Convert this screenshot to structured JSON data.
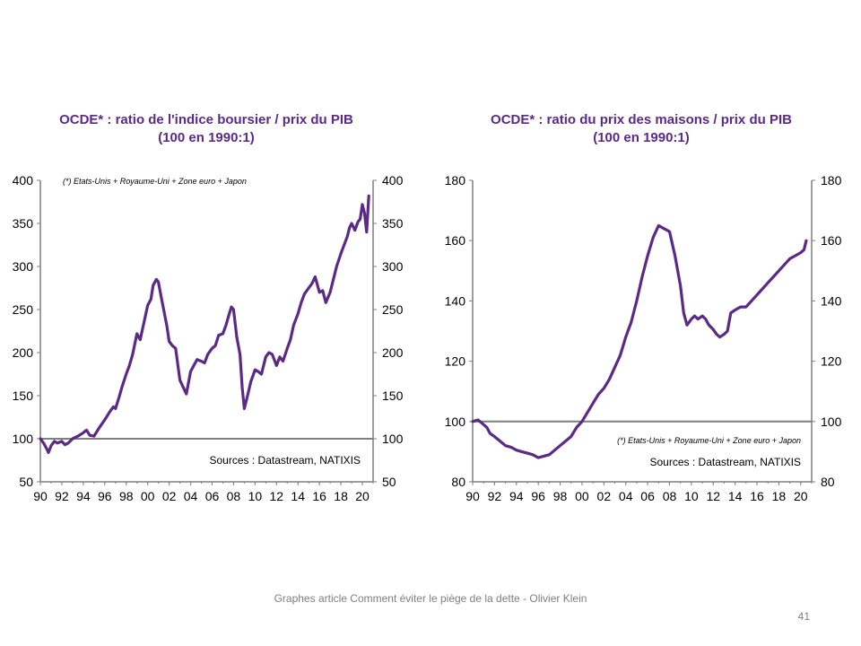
{
  "slide": {
    "footer": "Graphes article Comment  éviter le piège de la dette - Olivier Klein",
    "page_number": "41"
  },
  "colors": {
    "line": "#5b2a86",
    "baseline": "#7f7f7f",
    "axis": "#7f7f7f",
    "title": "#5b2a86"
  },
  "chart_data": [
    {
      "type": "line",
      "title": "OCDE* : ratio de l'indice boursier / prix du PIB",
      "subtitle": "(100 en 1990:1)",
      "note": "(*) Etats-Unis + Royaume-Uni + Zone euro + Japon",
      "sources": "Sources : Datastream,  NATIXIS",
      "x_ticks": [
        "90",
        "92",
        "94",
        "96",
        "98",
        "00",
        "02",
        "04",
        "06",
        "08",
        "10",
        "12",
        "14",
        "16",
        "18",
        "20"
      ],
      "y_ticks": [
        50,
        100,
        150,
        200,
        250,
        300,
        350,
        400
      ],
      "xlim": [
        1990,
        2021
      ],
      "ylim": [
        50,
        400
      ],
      "baseline": 100,
      "grid": false,
      "series": [
        {
          "x": [
            1990.0,
            1990.3,
            1990.6,
            1990.75,
            1991.0,
            1991.3,
            1991.6,
            1992.0,
            1992.3,
            1992.6,
            1993.0,
            1993.5,
            1994.0,
            1994.3,
            1994.6,
            1995.0,
            1995.5,
            1996.0,
            1996.5,
            1996.8,
            1997.0,
            1997.3,
            1997.6,
            1998.0,
            1998.3,
            1998.6,
            1998.8,
            1999.0,
            1999.3,
            1999.6,
            2000.0,
            2000.3,
            2000.5,
            2000.8,
            2001.0,
            2001.3,
            2001.6,
            2001.8,
            2002.0,
            2002.3,
            2002.6,
            2003.0,
            2003.3,
            2003.6,
            2004.0,
            2004.3,
            2004.6,
            2005.0,
            2005.3,
            2005.6,
            2006.0,
            2006.3,
            2006.6,
            2007.0,
            2007.3,
            2007.6,
            2007.8,
            2008.0,
            2008.3,
            2008.6,
            2008.8,
            2009.0,
            2009.3,
            2009.6,
            2010.0,
            2010.3,
            2010.6,
            2011.0,
            2011.3,
            2011.6,
            2012.0,
            2012.3,
            2012.6,
            2013.0,
            2013.3,
            2013.6,
            2014.0,
            2014.3,
            2014.6,
            2015.0,
            2015.3,
            2015.6,
            2016.0,
            2016.3,
            2016.6,
            2017.0,
            2017.3,
            2017.6,
            2018.0,
            2018.3,
            2018.6,
            2018.8,
            2019.0,
            2019.3,
            2019.6,
            2019.8,
            2020.0,
            2020.2,
            2020.4,
            2020.6
          ],
          "y": [
            100,
            95,
            88,
            84,
            92,
            97,
            95,
            97,
            93,
            95,
            100,
            103,
            107,
            110,
            104,
            103,
            113,
            122,
            132,
            137,
            135,
            147,
            160,
            175,
            185,
            198,
            210,
            222,
            215,
            232,
            255,
            262,
            278,
            285,
            282,
            262,
            243,
            230,
            213,
            208,
            205,
            168,
            160,
            152,
            178,
            185,
            192,
            190,
            188,
            198,
            205,
            208,
            220,
            222,
            232,
            245,
            253,
            250,
            218,
            198,
            160,
            135,
            150,
            166,
            180,
            178,
            175,
            195,
            200,
            198,
            185,
            195,
            190,
            205,
            215,
            232,
            245,
            258,
            268,
            275,
            280,
            288,
            270,
            272,
            258,
            270,
            285,
            300,
            315,
            325,
            335,
            345,
            350,
            342,
            352,
            355,
            372,
            362,
            340,
            382
          ]
        }
      ]
    },
    {
      "type": "line",
      "title": "OCDE* : ratio du prix des maisons / prix du PIB",
      "subtitle": "(100 en 1990:1)",
      "note": "(*) Etats-Unis + Royaume-Uni + Zone euro + Japon",
      "sources": "Sources : Datastream,  NATIXIS",
      "x_ticks": [
        "90",
        "92",
        "94",
        "96",
        "98",
        "00",
        "02",
        "04",
        "06",
        "08",
        "10",
        "12",
        "14",
        "16",
        "18",
        "20"
      ],
      "y_ticks": [
        80,
        100,
        120,
        140,
        160,
        180
      ],
      "xlim": [
        1990,
        2021
      ],
      "ylim": [
        80,
        180
      ],
      "baseline": 100,
      "grid": false,
      "series": [
        {
          "x": [
            1990.0,
            1990.5,
            1991.0,
            1991.3,
            1991.6,
            1992.0,
            1992.5,
            1993.0,
            1993.5,
            1994.0,
            1994.5,
            1995.0,
            1995.5,
            1996.0,
            1996.5,
            1997.0,
            1997.5,
            1998.0,
            1998.5,
            1999.0,
            1999.5,
            2000.0,
            2000.5,
            2001.0,
            2001.5,
            2002.0,
            2002.5,
            2003.0,
            2003.5,
            2004.0,
            2004.5,
            2005.0,
            2005.5,
            2006.0,
            2006.5,
            2007.0,
            2007.5,
            2008.0,
            2008.5,
            2009.0,
            2009.3,
            2009.6,
            2010.0,
            2010.3,
            2010.6,
            2011.0,
            2011.3,
            2011.6,
            2012.0,
            2012.3,
            2012.6,
            2013.0,
            2013.3,
            2013.6,
            2014.0,
            2014.5,
            2015.0,
            2015.5,
            2016.0,
            2016.5,
            2017.0,
            2017.5,
            2018.0,
            2018.5,
            2019.0,
            2019.5,
            2020.0,
            2020.3,
            2020.5
          ],
          "y": [
            100,
            100.5,
            99,
            98,
            96,
            95,
            93.5,
            92,
            91.5,
            90.5,
            90,
            89.5,
            89,
            88,
            88.5,
            89,
            90.5,
            92,
            93.5,
            95,
            98,
            100,
            103,
            106,
            109,
            111,
            114,
            118,
            122,
            128,
            133,
            140,
            148,
            155,
            161,
            165,
            164,
            163,
            155,
            145,
            136,
            132,
            134,
            135,
            134,
            135,
            134,
            132,
            130.5,
            129,
            128,
            129,
            130,
            136,
            137,
            138,
            138,
            140,
            142,
            144,
            146,
            148,
            150,
            152,
            154,
            155,
            156,
            157,
            160
          ]
        }
      ]
    }
  ]
}
